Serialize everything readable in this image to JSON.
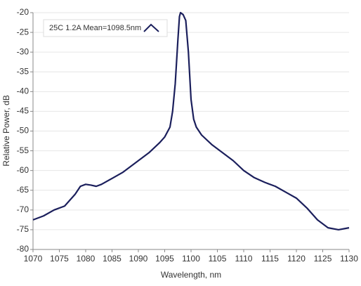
{
  "chart_data": {
    "type": "line",
    "x_label": "Wavelength, nm",
    "y_label": "Relative Power, dB",
    "x": [
      1070,
      1072,
      1074,
      1076,
      1078,
      1079,
      1080,
      1081,
      1082,
      1083,
      1085,
      1087,
      1090,
      1092,
      1094,
      1095,
      1096,
      1096.5,
      1097,
      1097.5,
      1097.8,
      1098,
      1098.5,
      1099,
      1099.5,
      1100,
      1100.5,
      1101,
      1102,
      1104,
      1106,
      1108,
      1110,
      1112,
      1114,
      1116,
      1118,
      1120,
      1122,
      1124,
      1126,
      1128,
      1130
    ],
    "series": [
      {
        "name": "25C 1.2A Mean=1098.5nm",
        "color": "#1b1f5c",
        "values": [
          -72.5,
          -71.5,
          -70,
          -69,
          -66,
          -64,
          -63.5,
          -63.7,
          -64,
          -63.5,
          -62,
          -60.5,
          -57.5,
          -55.5,
          -53,
          -51.5,
          -49,
          -45,
          -38,
          -27,
          -21,
          -20,
          -20.5,
          -22,
          -30,
          -42,
          -47,
          -49,
          -51,
          -53.5,
          -55.5,
          -57.5,
          -60,
          -61.8,
          -63,
          -64,
          -65.5,
          -67,
          -69.5,
          -72.5,
          -74.5,
          -75,
          -74.5
        ]
      }
    ],
    "xlim": [
      1070,
      1130
    ],
    "xticks": [
      1070,
      1075,
      1080,
      1085,
      1090,
      1095,
      1100,
      1105,
      1110,
      1115,
      1120,
      1125,
      1130
    ],
    "ylim": [
      -80,
      -20
    ],
    "yticks": [
      -80,
      -75,
      -70,
      -65,
      -60,
      -55,
      -50,
      -45,
      -40,
      -35,
      -30,
      -25,
      -20
    ],
    "grid": true
  }
}
